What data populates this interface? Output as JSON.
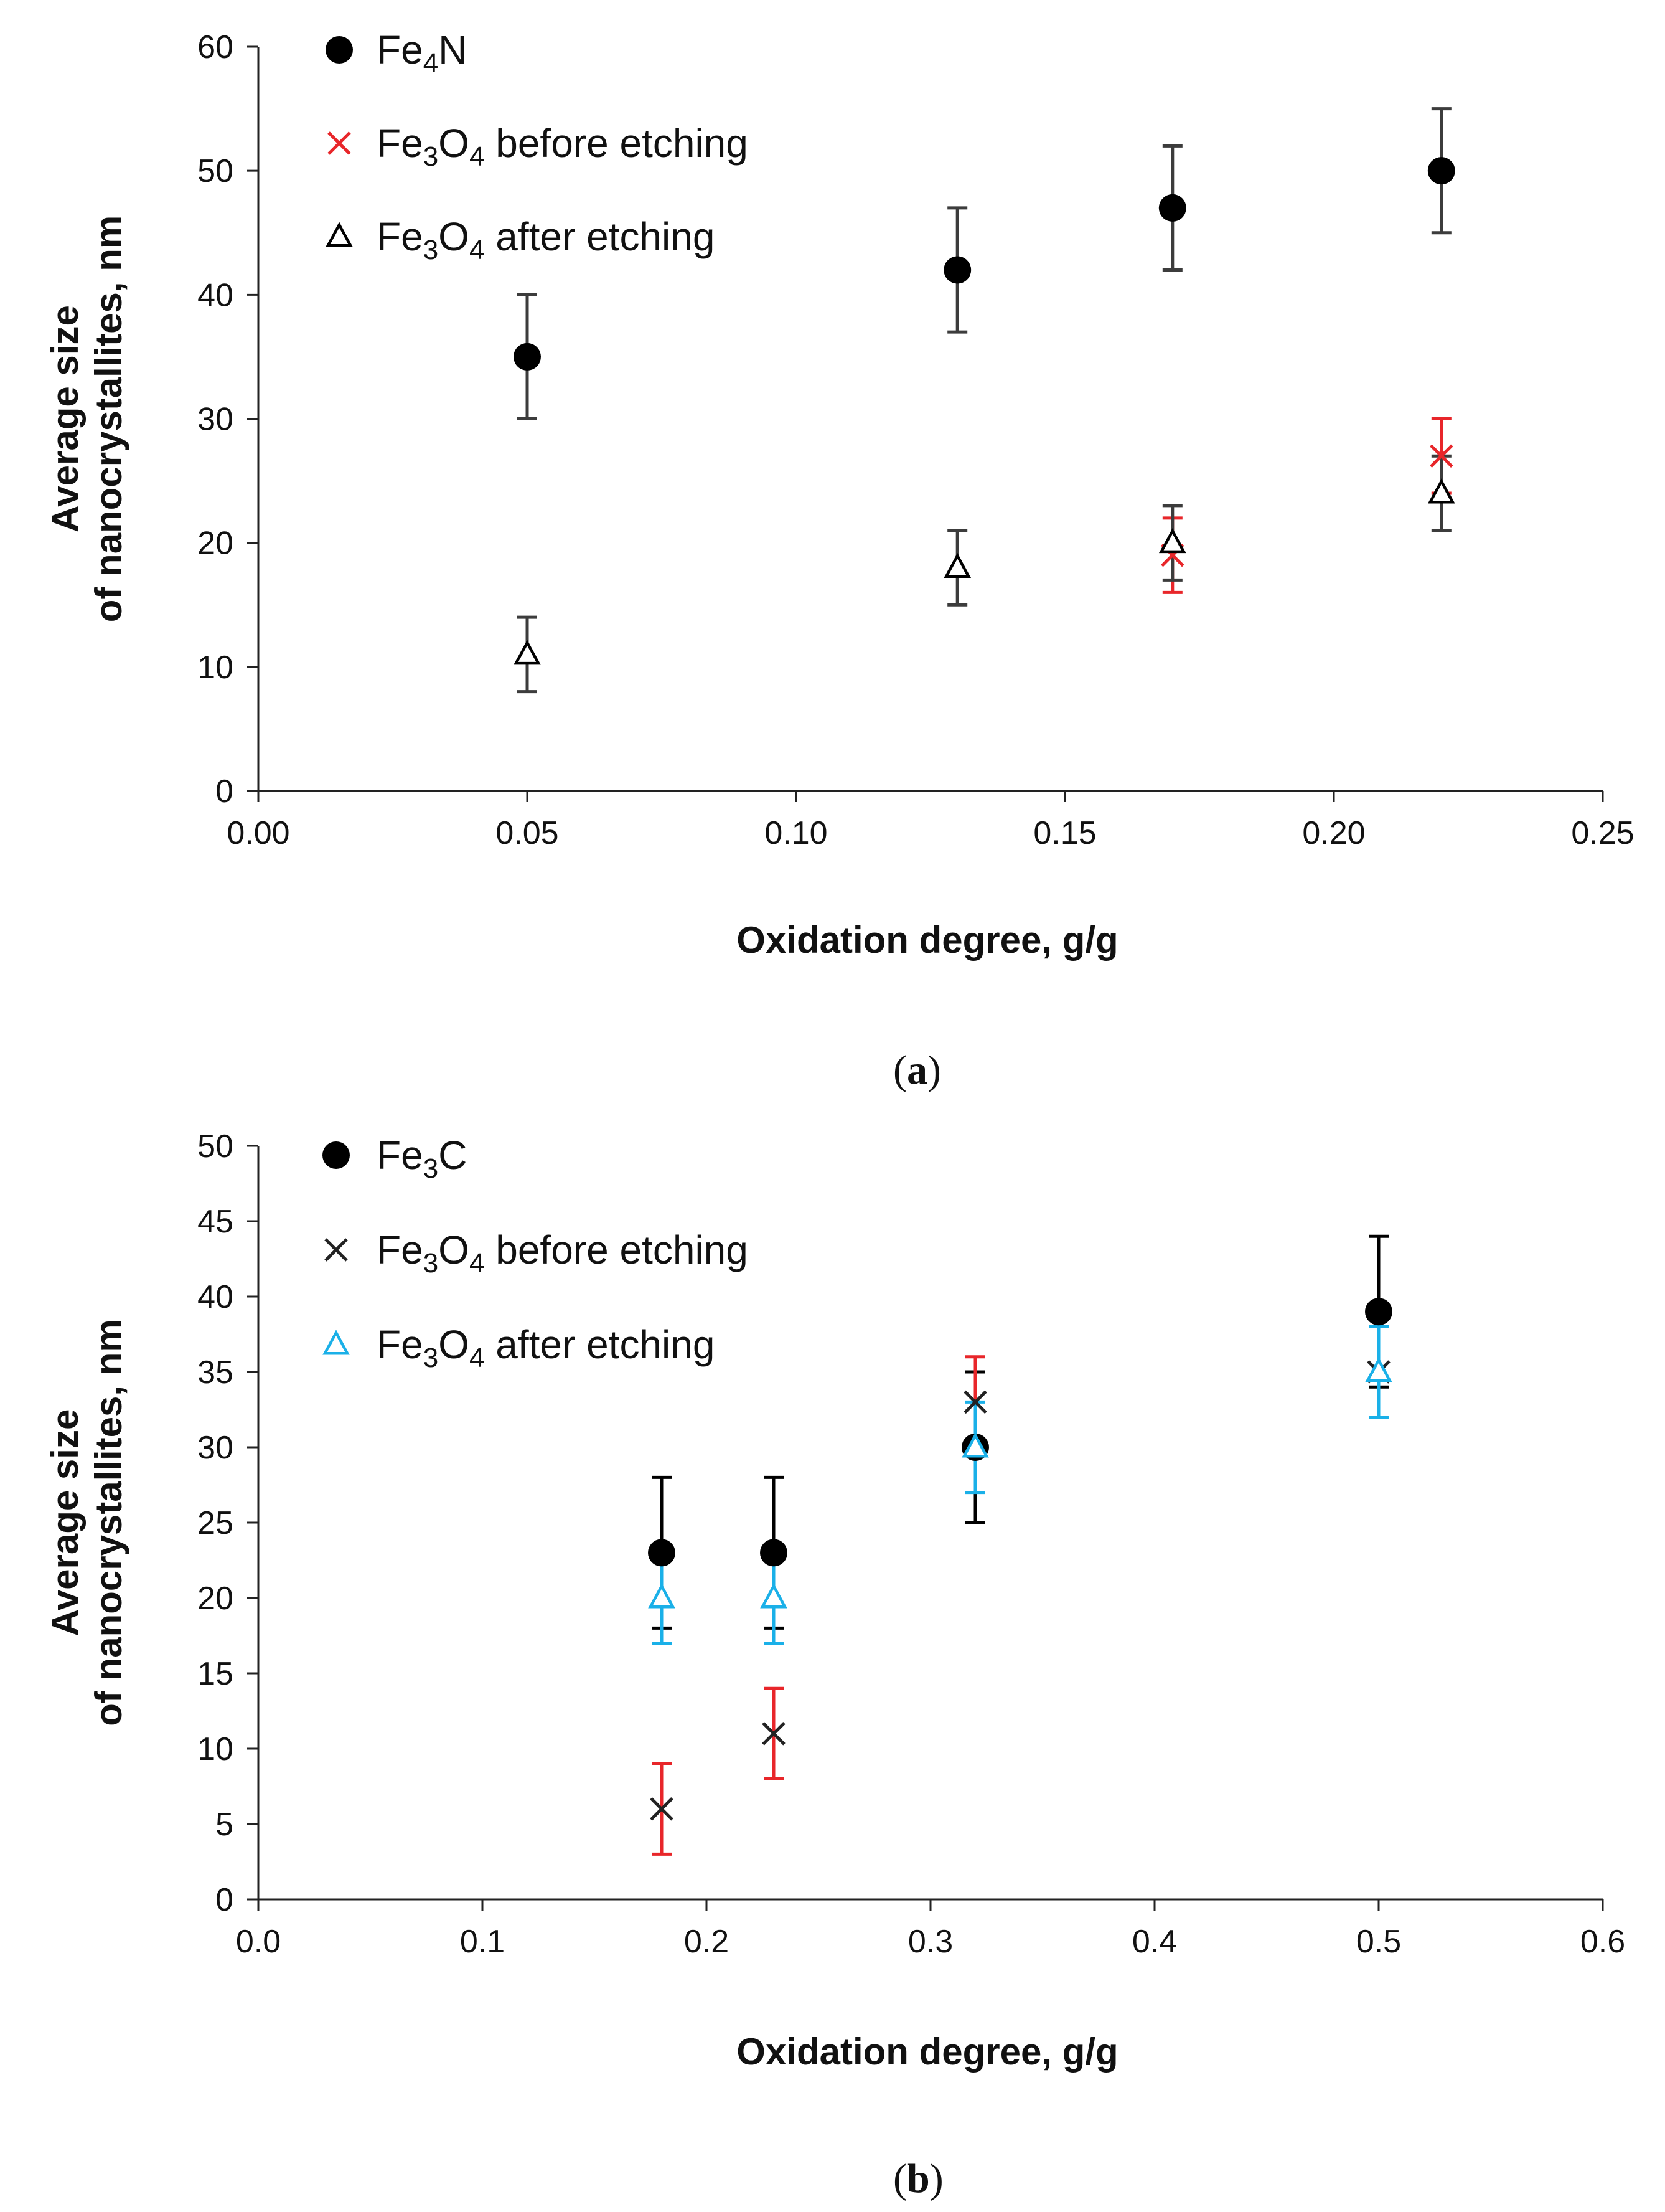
{
  "chart_data": [
    {
      "type": "scatter",
      "panel_label": "a",
      "xlabel": "Oxidation degree, g/g",
      "ylabel_lines": [
        "Average size",
        "of nanocrystallites, nm"
      ],
      "xlim": [
        0,
        0.25
      ],
      "ylim": [
        0,
        60
      ],
      "xticks": [
        "0.00",
        "0.05",
        "0.10",
        "0.15",
        "0.20",
        "0.25"
      ],
      "yticks": [
        "0",
        "10",
        "20",
        "30",
        "40",
        "50",
        "60"
      ],
      "legend_position": "top-left",
      "series": [
        {
          "name": "Fe4N",
          "name_parts": [
            [
              "Fe",
              ""
            ],
            [
              "4",
              "sub"
            ],
            [
              "N",
              ""
            ]
          ],
          "marker": "circle",
          "color": "#000000",
          "error_color": "#3c3c3c",
          "x": [
            0.05,
            0.13,
            0.17,
            0.22
          ],
          "y": [
            35,
            42,
            47,
            50
          ],
          "err": [
            5,
            5,
            5,
            5
          ]
        },
        {
          "name": "Fe3O4 before etching",
          "name_parts": [
            [
              "Fe",
              ""
            ],
            [
              "3",
              "sub"
            ],
            [
              "O",
              ""
            ],
            [
              "4",
              "sub"
            ],
            [
              " before etching",
              ""
            ]
          ],
          "marker": "x",
          "color": "#e8262a",
          "error_color": "#e8262a",
          "x": [
            0.17,
            0.22
          ],
          "y": [
            19,
            27
          ],
          "err": [
            3,
            3
          ]
        },
        {
          "name": "Fe3O4 after etching",
          "name_parts": [
            [
              "Fe",
              ""
            ],
            [
              "3",
              "sub"
            ],
            [
              "O",
              ""
            ],
            [
              "4",
              "sub"
            ],
            [
              " after etching",
              ""
            ]
          ],
          "marker": "triangle",
          "color": "#000000",
          "error_color": "#3c3c3c",
          "x": [
            0.05,
            0.13,
            0.17,
            0.22
          ],
          "y": [
            11,
            18,
            20,
            24
          ],
          "err": [
            3,
            3,
            3,
            3
          ]
        }
      ]
    },
    {
      "type": "scatter",
      "panel_label": "b",
      "xlabel": "Oxidation degree, g/g",
      "ylabel_lines": [
        "Average size",
        "of nanocrystallites, nm"
      ],
      "xlim": [
        0,
        0.6
      ],
      "ylim": [
        0,
        50
      ],
      "xticks": [
        "0.0",
        "0.1",
        "0.2",
        "0.3",
        "0.4",
        "0.5",
        "0.6"
      ],
      "yticks": [
        "0",
        "5",
        "10",
        "15",
        "20",
        "25",
        "30",
        "35",
        "40",
        "45",
        "50"
      ],
      "legend_position": "top-left",
      "series": [
        {
          "name": "Fe3C",
          "name_parts": [
            [
              "Fe",
              ""
            ],
            [
              "3",
              "sub"
            ],
            [
              "C",
              ""
            ]
          ],
          "marker": "circle",
          "color": "#000000",
          "error_color": "#000000",
          "x": [
            0.18,
            0.23,
            0.32,
            0.5
          ],
          "y": [
            23,
            23,
            30,
            39
          ],
          "err": [
            5,
            5,
            5,
            5
          ]
        },
        {
          "name": "Fe3O4 before etching",
          "name_parts": [
            [
              "Fe",
              ""
            ],
            [
              "3",
              "sub"
            ],
            [
              "O",
              ""
            ],
            [
              "4",
              "sub"
            ],
            [
              " before etching",
              ""
            ]
          ],
          "marker": "x",
          "color": "#222222",
          "error_color": "#e8262a",
          "x": [
            0.18,
            0.23,
            0.32,
            0.5
          ],
          "y": [
            6,
            11,
            33,
            35
          ],
          "err": [
            3,
            3,
            3,
            3
          ]
        },
        {
          "name": "Fe3O4 after etching",
          "name_parts": [
            [
              "Fe",
              ""
            ],
            [
              "3",
              "sub"
            ],
            [
              "O",
              ""
            ],
            [
              "4",
              "sub"
            ],
            [
              " after etching",
              ""
            ]
          ],
          "marker": "triangle",
          "color": "#1ab0e8",
          "error_color": "#1ab0e8",
          "x": [
            0.18,
            0.23,
            0.32,
            0.5
          ],
          "y": [
            20,
            20,
            30,
            35
          ],
          "err": [
            3,
            3,
            3,
            3
          ]
        }
      ]
    }
  ]
}
